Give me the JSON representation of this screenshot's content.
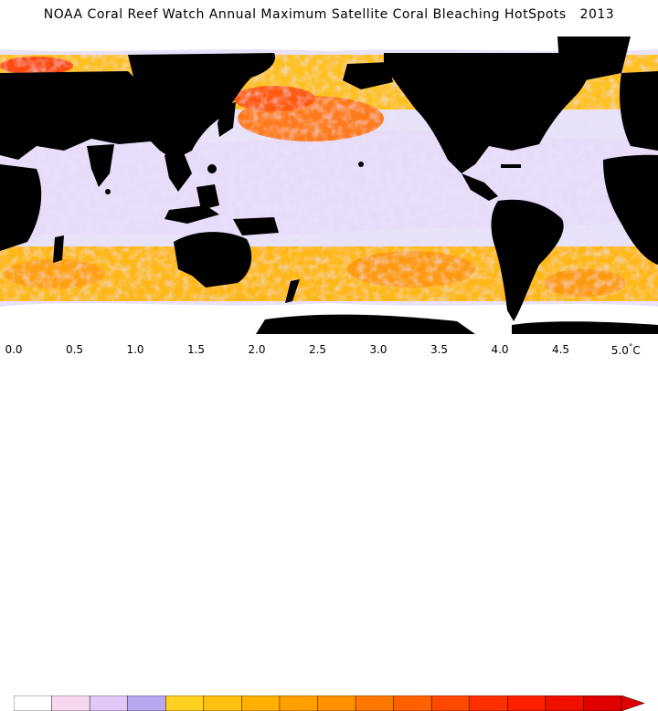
{
  "title": "NOAA Coral Reef Watch Annual Maximum Satellite Coral Bleaching HotSpots   2013",
  "map": {
    "projection": "equirectangular",
    "ocean_base_color": "#e7e0f8",
    "land_color": "#000000",
    "ice_color": "#ffffff"
  },
  "legend": {
    "unit": "°C",
    "tick_labels": [
      "0.0",
      "0.5",
      "1.0",
      "1.5",
      "2.0",
      "2.5",
      "3.0",
      "3.5",
      "4.0",
      "4.5",
      "5.0"
    ],
    "last_label_suffix": "°C",
    "colors": [
      "#ffffff",
      "#f8d8f0",
      "#e0c8f8",
      "#b8a8f0",
      "#ffd020",
      "#ffc010",
      "#ffb000",
      "#ffa000",
      "#ff9000",
      "#ff7800",
      "#ff6000",
      "#ff4800",
      "#ff3000",
      "#ff2000",
      "#f01000",
      "#e00000"
    ],
    "range": [
      0,
      5
    ]
  }
}
